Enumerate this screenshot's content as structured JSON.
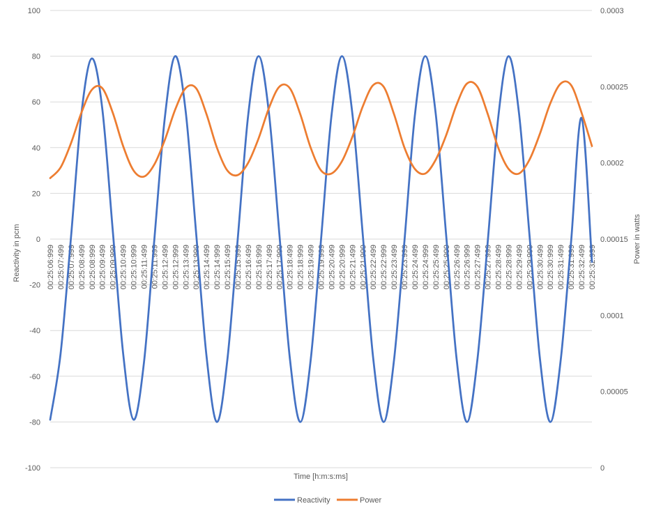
{
  "chart_data": {
    "type": "line",
    "title": "",
    "xlabel": "Time [h:m:s:ms]",
    "ylabel": "Reactivity in pcm",
    "y2label": "Power in watts",
    "ylim": [
      -100,
      100
    ],
    "y_ticks": [
      "100",
      "80",
      "60",
      "40",
      "20",
      "0",
      "-20",
      "-40",
      "-60",
      "-80",
      "-100"
    ],
    "y2lim": [
      0,
      0.0003
    ],
    "y2_ticks": [
      "0.0003",
      "0.00025",
      "0.0002",
      "0.00015",
      "0.0001",
      "0.00005",
      "0"
    ],
    "x_tick_labels": [
      "00:25:06:999",
      "00:25:07:499",
      "00:25:07:999",
      "00:25:08:499",
      "00:25:08:999",
      "00:25:09:499",
      "00:25:09:999",
      "00:25:10:499",
      "00:25:10:999",
      "00:25:11:499",
      "00:25:11:999",
      "00:25:12:499",
      "00:25:12:999",
      "00:25:13:499",
      "00:25:13:999",
      "00:25:14:499",
      "00:25:14:999",
      "00:25:15:499",
      "00:25:15:999",
      "00:25:16:499",
      "00:25:16:999",
      "00:25:17:499",
      "00:25:17:999",
      "00:25:18:499",
      "00:25:18:999",
      "00:25:19:499",
      "00:25:19:999",
      "00:25:20:499",
      "00:25:20:999",
      "00:25:21:499",
      "00:25:21:999",
      "00:25:22:499",
      "00:25:22:999",
      "00:25:23:499",
      "00:25:23:999",
      "00:25:24:499",
      "00:25:24:999",
      "00:25:25:499",
      "00:25:25:999",
      "00:25:26:499",
      "00:25:26:999",
      "00:25:27:499",
      "00:25:27:999",
      "00:25:28:499",
      "00:25:28:999",
      "00:25:29:499",
      "00:25:29:999",
      "00:25:30:499",
      "00:25:30:999",
      "00:25:31:499",
      "00:25:31:999",
      "00:25:32:499",
      "00:25:32:999"
    ],
    "x_seconds": [
      0,
      0.5,
      1,
      1.5,
      2,
      2.5,
      3,
      3.5,
      4,
      4.5,
      5,
      5.5,
      6,
      6.5,
      7,
      7.5,
      8,
      8.5,
      9,
      9.5,
      10,
      10.5,
      11,
      11.5,
      12,
      12.5,
      13,
      13.5,
      14,
      14.5,
      15,
      15.5,
      16,
      16.5,
      17,
      17.5,
      18,
      18.5,
      19,
      19.5,
      20,
      20.5,
      21,
      21.5,
      22,
      22.5,
      23,
      23.5,
      24,
      24.5,
      25,
      25.5,
      26
    ],
    "series": [
      {
        "name": "Reactivity",
        "axis": "left",
        "color": "#4472C4",
        "values": [
          -79,
          -50,
          1,
          55,
          79,
          57,
          4,
          -50,
          -79,
          -54,
          0,
          53,
          80,
          56,
          3,
          -51,
          -80,
          -53,
          0,
          54,
          80,
          55,
          2,
          -52,
          -80,
          -53,
          0,
          54,
          80,
          55,
          2,
          -52,
          -80,
          -53,
          -1,
          54,
          80,
          55,
          2,
          -52,
          -80,
          -53,
          -1,
          53,
          80,
          55,
          2,
          -52,
          -80,
          -53,
          -1,
          53,
          -10
        ]
      },
      {
        "name": "Power",
        "axis": "right",
        "color": "#ED7D31",
        "values": [
          0.00019,
          0.000197,
          0.000213,
          0.000233,
          0.000248,
          0.000249,
          0.000233,
          0.000211,
          0.000195,
          0.000191,
          0.000199,
          0.000215,
          0.000235,
          0.000249,
          0.000249,
          0.000232,
          0.00021,
          0.000195,
          0.000192,
          0.0002,
          0.000216,
          0.000236,
          0.00025,
          0.000249,
          0.000232,
          0.00021,
          0.000195,
          0.000193,
          0.000201,
          0.000217,
          0.000237,
          0.000251,
          0.00025,
          0.000232,
          0.00021,
          0.000196,
          0.000193,
          0.000202,
          0.000218,
          0.000238,
          0.000252,
          0.00025,
          0.000232,
          0.00021,
          0.000196,
          0.000193,
          0.000202,
          0.000219,
          0.000239,
          0.000252,
          0.000251,
          0.000233,
          0.000211
        ]
      }
    ],
    "legend": {
      "placement": "bottom",
      "entries": [
        "Reactivity",
        "Power"
      ]
    },
    "grid": true
  }
}
